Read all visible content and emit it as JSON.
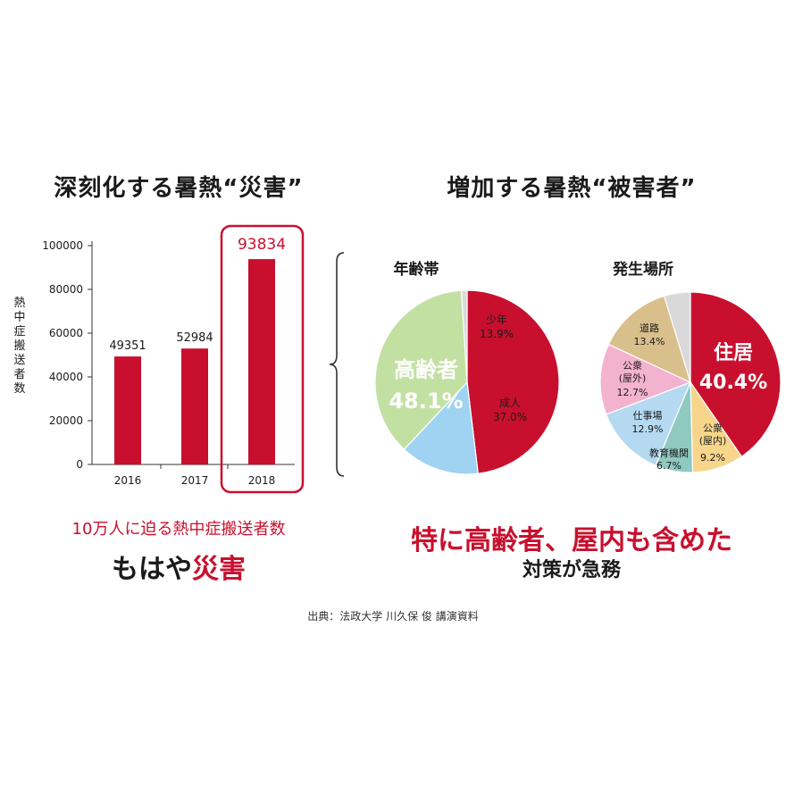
{
  "left_title": "深刻化する暑熱“災害”",
  "right_title": "増加する暑熱“被害者”",
  "left_caption_line1": "10万人に迫る熱中症搬送者数",
  "left_caption_line2_prefix": "もはや",
  "left_caption_line2_highlight": "災害",
  "right_caption_line1": "特に高齢者、屋内も含めた",
  "right_caption_line2": "対策が急務",
  "source": "出典：法政大学 川久保 俊 講演資料",
  "colors": {
    "red": "#c8102e",
    "blue": "#9fd3f1",
    "green": "#c3e0a3",
    "grey": "#d9d9d9",
    "tan": "#d9bf8c",
    "pink": "#f3b3cf",
    "lightblue": "#b5d9f0",
    "teal": "#8fc9c0",
    "yellow": "#f7d58a"
  },
  "chart_data": [
    {
      "type": "bar",
      "ylabel": "熱中症搬送者数",
      "categories": [
        "2016",
        "2017",
        "2018"
      ],
      "values": [
        49351,
        52984,
        93834
      ],
      "value_labels": [
        "49351",
        "52984",
        "93834"
      ],
      "ylim": [
        0,
        100000
      ],
      "yticks": [
        0,
        20000,
        40000,
        60000,
        80000,
        100000
      ],
      "ytick_labels": [
        "0",
        "20000",
        "40000",
        "60000",
        "80000",
        "100000"
      ],
      "highlight_index": 2,
      "grid": false
    },
    {
      "type": "pie",
      "title": "年齢帯",
      "slices": [
        {
          "label": "高齢者",
          "value_label": "48.1%",
          "value": 48.1,
          "color_key": "red"
        },
        {
          "label": "少年",
          "value_label": "13.9%",
          "value": 13.9,
          "color_key": "blue"
        },
        {
          "label": "成人",
          "value_label": "37.0%",
          "value": 37.0,
          "color_key": "green"
        },
        {
          "label": "",
          "value_label": "",
          "value": 1.0,
          "color_key": "grey"
        }
      ]
    },
    {
      "type": "pie",
      "title": "発生場所",
      "slices": [
        {
          "label": "住居",
          "value_label": "40.4%",
          "value": 40.4,
          "color_key": "red"
        },
        {
          "label": "公衆\n(屋内)",
          "value_label": "9.2%",
          "value": 9.2,
          "color_key": "yellow"
        },
        {
          "label": "教育機関",
          "value_label": "6.7%",
          "value": 6.7,
          "color_key": "teal"
        },
        {
          "label": "仕事場",
          "value_label": "12.9%",
          "value": 12.9,
          "color_key": "lightblue"
        },
        {
          "label": "公衆\n(屋外)",
          "value_label": "12.7%",
          "value": 12.7,
          "color_key": "pink"
        },
        {
          "label": "道路",
          "value_label": "13.4%",
          "value": 13.4,
          "color_key": "tan"
        },
        {
          "label": "",
          "value_label": "",
          "value": 4.7,
          "color_key": "grey"
        }
      ]
    }
  ]
}
